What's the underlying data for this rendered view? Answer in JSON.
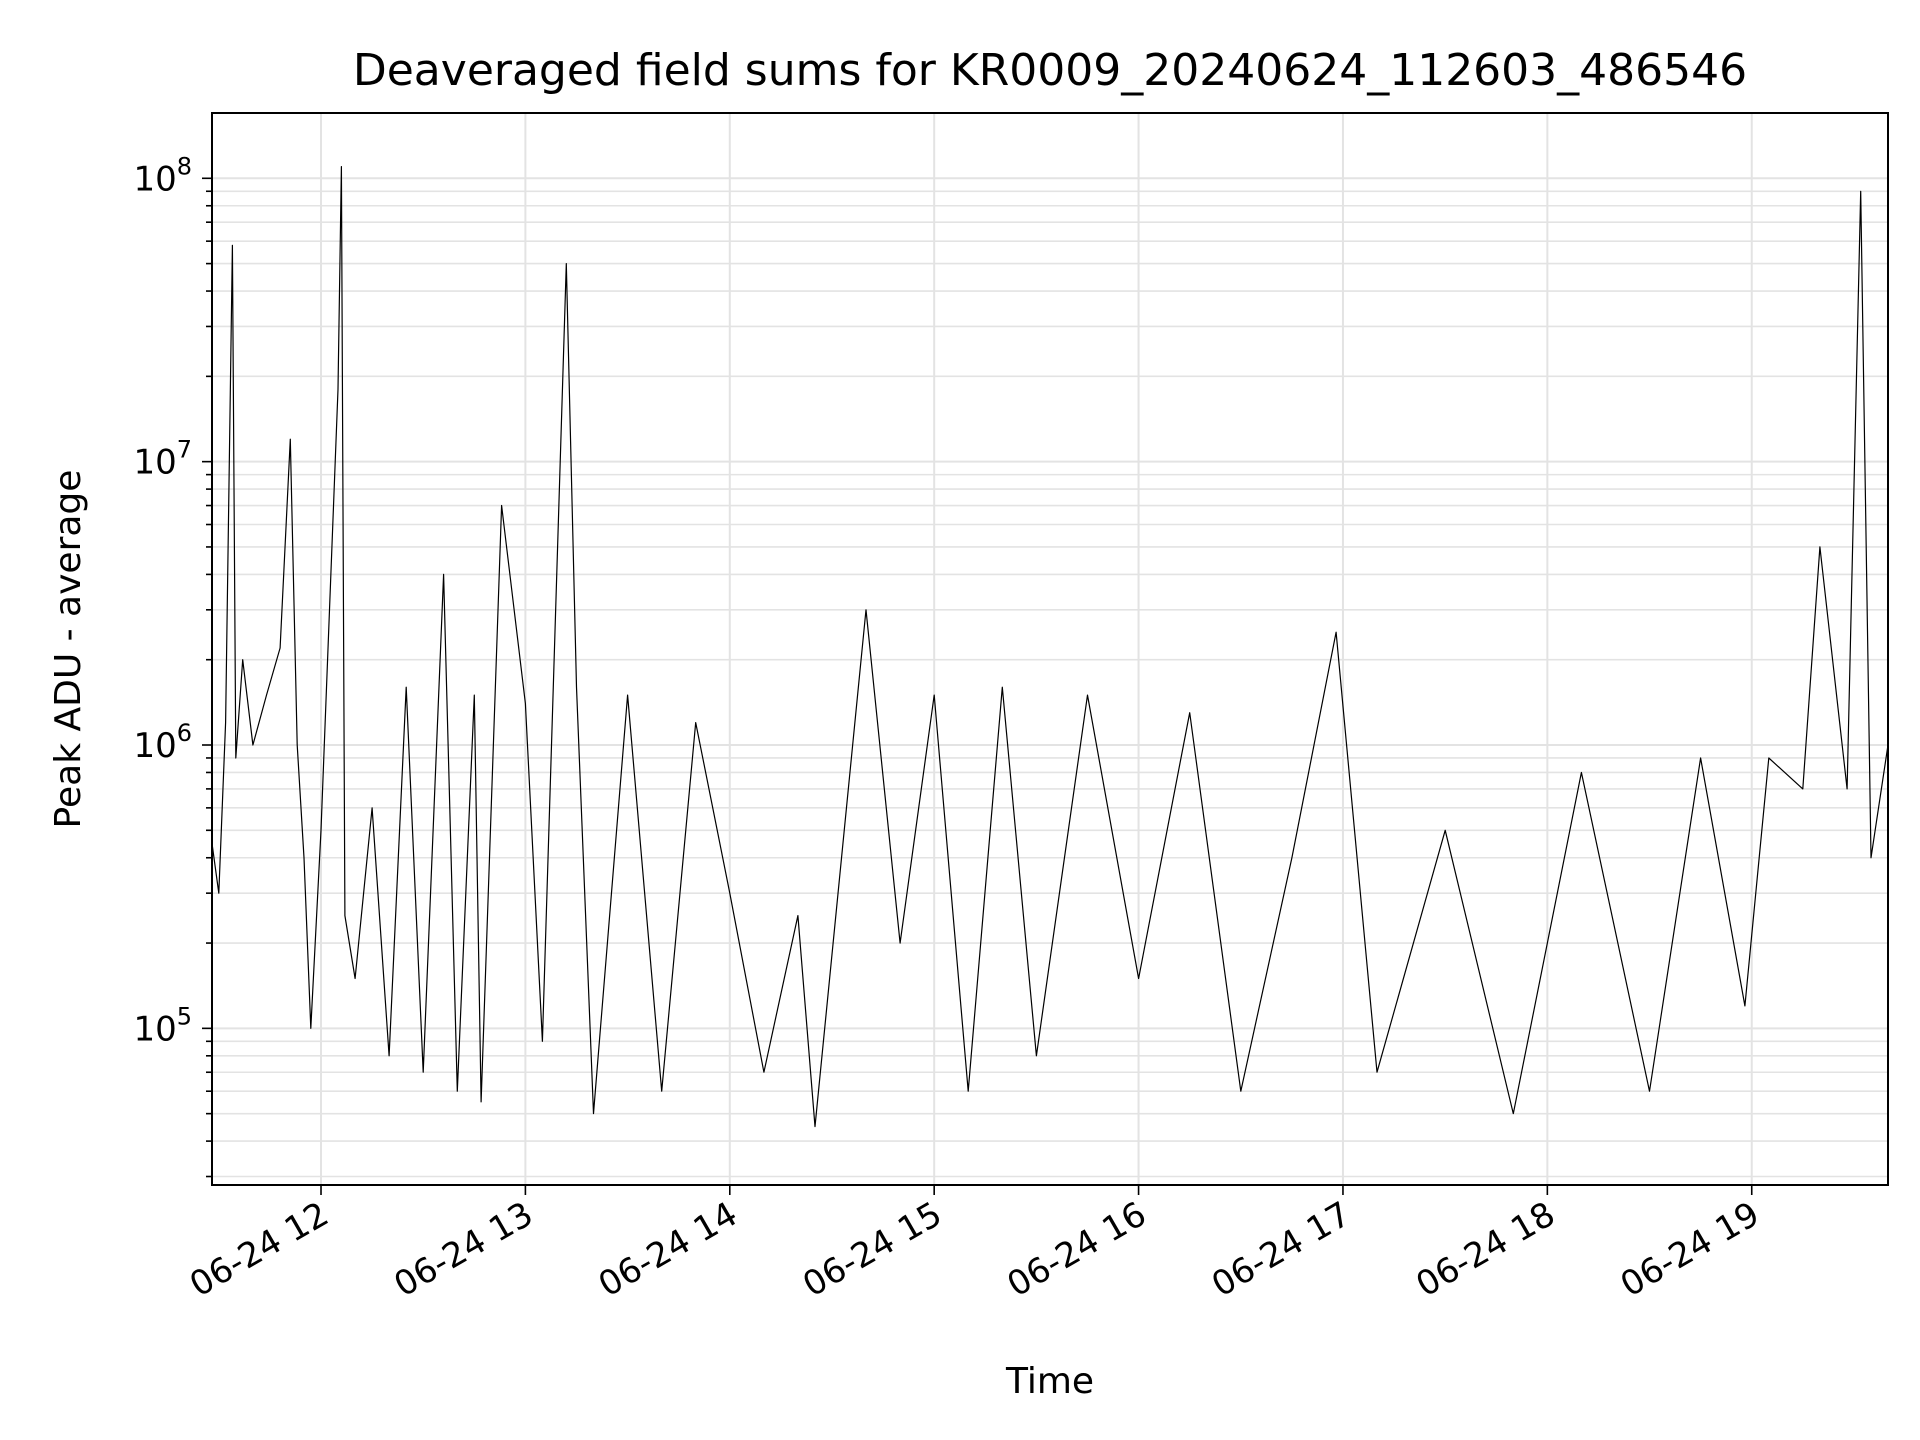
{
  "chart_data": {
    "type": "line",
    "title": "Deaveraged field sums for KR0009_20240624_112603_486546",
    "xlabel": "Time",
    "ylabel": "Peak ADU - average",
    "y_scale": "log",
    "ylim": [
      28000,
      170000000
    ],
    "xlim": [
      "2024-06-24 11:28",
      "2024-06-24 19:40"
    ],
    "grid": true,
    "x_ticks": [
      "06-24 12",
      "06-24 13",
      "06-24 14",
      "06-24 15",
      "06-24 16",
      "06-24 17",
      "06-24 18",
      "06-24 19"
    ],
    "y_ticks": [
      {
        "label": "10",
        "exp": "5",
        "value": 100000
      },
      {
        "label": "10",
        "exp": "6",
        "value": 1000000
      },
      {
        "label": "10",
        "exp": "7",
        "value": 10000000
      },
      {
        "label": "10",
        "exp": "8",
        "value": 100000000
      }
    ],
    "line_color": "#000000",
    "series": [
      {
        "points": [
          [
            "2024-06-24 11:28",
            450000
          ],
          [
            "2024-06-24 11:30",
            300000
          ],
          [
            "2024-06-24 11:32",
            1200000
          ],
          [
            "2024-06-24 11:34",
            58000000
          ],
          [
            "2024-06-24 11:35",
            900000
          ],
          [
            "2024-06-24 11:37",
            2000000
          ],
          [
            "2024-06-24 11:40",
            1000000
          ],
          [
            "2024-06-24 11:44",
            1500000
          ],
          [
            "2024-06-24 11:48",
            2200000
          ],
          [
            "2024-06-24 11:51",
            12000000
          ],
          [
            "2024-06-24 11:53",
            1000000
          ],
          [
            "2024-06-24 11:55",
            400000
          ],
          [
            "2024-06-24 11:57",
            100000
          ],
          [
            "2024-06-24 12:00",
            500000
          ],
          [
            "2024-06-24 12:05",
            18000000
          ],
          [
            "2024-06-24 12:06",
            110000000
          ],
          [
            "2024-06-24 12:07",
            250000
          ],
          [
            "2024-06-24 12:10",
            150000
          ],
          [
            "2024-06-24 12:15",
            600000
          ],
          [
            "2024-06-24 12:20",
            80000
          ],
          [
            "2024-06-24 12:25",
            1600000
          ],
          [
            "2024-06-24 12:30",
            70000
          ],
          [
            "2024-06-24 12:36",
            4000000
          ],
          [
            "2024-06-24 12:40",
            60000
          ],
          [
            "2024-06-24 12:45",
            1500000
          ],
          [
            "2024-06-24 12:47",
            55000
          ],
          [
            "2024-06-24 12:53",
            7000000
          ],
          [
            "2024-06-24 13:00",
            1400000
          ],
          [
            "2024-06-24 13:05",
            90000
          ],
          [
            "2024-06-24 13:12",
            50000000
          ],
          [
            "2024-06-24 13:15",
            1600000
          ],
          [
            "2024-06-24 13:20",
            50000
          ],
          [
            "2024-06-24 13:30",
            1500000
          ],
          [
            "2024-06-24 13:40",
            60000
          ],
          [
            "2024-06-24 13:50",
            1200000
          ],
          [
            "2024-06-24 14:00",
            300000
          ],
          [
            "2024-06-24 14:10",
            70000
          ],
          [
            "2024-06-24 14:20",
            250000
          ],
          [
            "2024-06-24 14:25",
            45000
          ],
          [
            "2024-06-24 14:40",
            3000000
          ],
          [
            "2024-06-24 14:50",
            200000
          ],
          [
            "2024-06-24 15:00",
            1500000
          ],
          [
            "2024-06-24 15:10",
            60000
          ],
          [
            "2024-06-24 15:20",
            1600000
          ],
          [
            "2024-06-24 15:30",
            80000
          ],
          [
            "2024-06-24 15:45",
            1500000
          ],
          [
            "2024-06-24 16:00",
            150000
          ],
          [
            "2024-06-24 16:15",
            1300000
          ],
          [
            "2024-06-24 16:30",
            60000
          ],
          [
            "2024-06-24 16:45",
            400000
          ],
          [
            "2024-06-24 16:58",
            2500000
          ],
          [
            "2024-06-24 17:10",
            70000
          ],
          [
            "2024-06-24 17:30",
            500000
          ],
          [
            "2024-06-24 17:50",
            50000
          ],
          [
            "2024-06-24 18:10",
            800000
          ],
          [
            "2024-06-24 18:30",
            60000
          ],
          [
            "2024-06-24 18:45",
            900000
          ],
          [
            "2024-06-24 18:58",
            120000
          ],
          [
            "2024-06-24 19:05",
            900000
          ],
          [
            "2024-06-24 19:15",
            700000
          ],
          [
            "2024-06-24 19:20",
            5000000
          ],
          [
            "2024-06-24 19:28",
            700000
          ],
          [
            "2024-06-24 19:32",
            90000000
          ],
          [
            "2024-06-24 19:35",
            400000
          ],
          [
            "2024-06-24 19:40",
            1000000
          ]
        ]
      }
    ]
  }
}
